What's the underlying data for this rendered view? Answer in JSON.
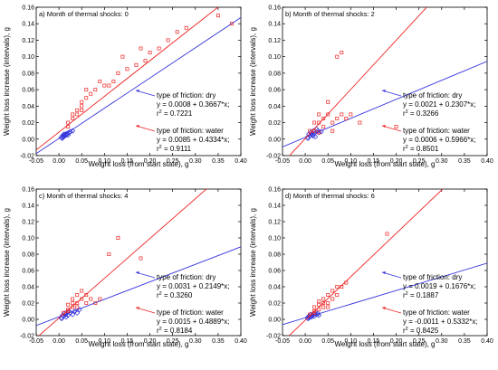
{
  "axes": {
    "xlabel": "Weight loss (from start state), g",
    "ylabel": "Weight loss increase (intervals), g",
    "xticks": [
      "-0.05",
      "0.00",
      "0.05",
      "0.10",
      "0.15",
      "0.20",
      "0.25",
      "0.30",
      "0.35",
      "0.40"
    ],
    "yticks": [
      "-0.02",
      "0.00",
      "0.02",
      "0.04",
      "0.06",
      "0.08",
      "0.10",
      "0.12",
      "0.14",
      "0.16"
    ]
  },
  "colors": {
    "dry": "#3333dd",
    "water": "#ee2222"
  },
  "chart_data": [
    {
      "type": "scatter",
      "title": "a) Month of thermal shocks: 0",
      "xlim": [
        -0.05,
        0.4
      ],
      "ylim": [
        -0.02,
        0.16
      ],
      "grid": false,
      "annotation_side": "right",
      "series": [
        {
          "name": "type of friction: dry",
          "intercept": 0.0008,
          "slope": 0.3667,
          "equation": "y = 0.0008 + 0.3667*x;",
          "r2_label": "r",
          "r2_sup": "2",
          "r2_value": " = 0.7221",
          "points": [
            [
              0.005,
              0.002
            ],
            [
              0.008,
              0.004
            ],
            [
              0.01,
              0.003
            ],
            [
              0.012,
              0.005
            ],
            [
              0.015,
              0.006
            ],
            [
              0.018,
              0.007
            ],
            [
              0.02,
              0.005
            ],
            [
              0.022,
              0.008
            ],
            [
              0.007,
              0.001
            ],
            [
              0.013,
              0.004
            ],
            [
              0.016,
              0.005
            ],
            [
              0.025,
              0.009
            ],
            [
              0.03,
              0.01
            ],
            [
              0.009,
              0.002
            ],
            [
              0.011,
              0.006
            ]
          ]
        },
        {
          "name": "type of friction: water",
          "intercept": 0.0085,
          "slope": 0.4334,
          "equation": "y = 0.0085 + 0.4334*x;",
          "r2_label": "r",
          "r2_sup": "2",
          "r2_value": " = 0.9111",
          "points": [
            [
              0.02,
              0.02
            ],
            [
              0.03,
              0.025
            ],
            [
              0.03,
              0.03
            ],
            [
              0.04,
              0.035
            ],
            [
              0.05,
              0.04
            ],
            [
              0.05,
              0.045
            ],
            [
              0.06,
              0.05
            ],
            [
              0.07,
              0.055
            ],
            [
              0.08,
              0.06
            ],
            [
              0.1,
              0.065
            ],
            [
              0.12,
              0.07
            ],
            [
              0.13,
              0.08
            ],
            [
              0.15,
              0.085
            ],
            [
              0.17,
              0.09
            ],
            [
              0.19,
              0.095
            ],
            [
              0.2,
              0.105
            ],
            [
              0.22,
              0.11
            ],
            [
              0.24,
              0.12
            ],
            [
              0.26,
              0.13
            ],
            [
              0.28,
              0.135
            ],
            [
              0.38,
              0.14
            ],
            [
              0.35,
              0.15
            ],
            [
              0.06,
              0.06
            ],
            [
              0.09,
              0.07
            ],
            [
              0.11,
              0.065
            ],
            [
              0.05,
              0.035
            ],
            [
              0.04,
              0.03
            ],
            [
              0.02,
              0.015
            ],
            [
              0.14,
              0.1
            ],
            [
              0.18,
              0.11
            ]
          ]
        }
      ]
    },
    {
      "type": "scatter",
      "title": "b) Month of thermal shocks: 2",
      "xlim": [
        -0.05,
        0.4
      ],
      "ylim": [
        -0.02,
        0.16
      ],
      "grid": false,
      "annotation_side": "right",
      "series": [
        {
          "name": "type of friction: dry",
          "intercept": 0.0021,
          "slope": 0.2307,
          "equation": "y = 0.0021 + 0.2307*x;",
          "r2_label": "r",
          "r2_sup": "2",
          "r2_value": " = 0.3266",
          "points": [
            [
              0.005,
              0.002
            ],
            [
              0.008,
              0.006
            ],
            [
              0.01,
              0.004
            ],
            [
              0.012,
              0.008
            ],
            [
              0.015,
              0.005
            ],
            [
              0.018,
              0.01
            ],
            [
              0.02,
              0.007
            ],
            [
              0.022,
              0.003
            ],
            [
              0.025,
              0.012
            ],
            [
              0.03,
              0.008
            ],
            [
              0.006,
              0.001
            ],
            [
              0.014,
              0.006
            ],
            [
              0.017,
              0.004
            ],
            [
              0.028,
              0.01
            ],
            [
              0.035,
              0.009
            ]
          ]
        },
        {
          "name": "type of friction: water",
          "intercept": 0.0006,
          "slope": 0.5966,
          "equation": "y = 0.0006 + 0.5966*x;",
          "r2_label": "r",
          "r2_sup": "2",
          "r2_value": " = 0.8501",
          "points": [
            [
              0.01,
              0.01
            ],
            [
              0.02,
              0.02
            ],
            [
              0.03,
              0.03
            ],
            [
              0.03,
              0.02
            ],
            [
              0.04,
              0.025
            ],
            [
              0.05,
              0.03
            ],
            [
              0.05,
              0.045
            ],
            [
              0.06,
              0.02
            ],
            [
              0.07,
              0.025
            ],
            [
              0.08,
              0.03
            ],
            [
              0.09,
              0.025
            ],
            [
              0.1,
              0.03
            ],
            [
              0.12,
              0.02
            ],
            [
              0.2,
              0.015
            ],
            [
              0.07,
              0.1
            ],
            [
              0.08,
              0.105
            ],
            [
              0.04,
              0.015
            ],
            [
              0.02,
              0.01
            ],
            [
              0.06,
              0.01
            ],
            [
              0.03,
              0.008
            ]
          ]
        }
      ]
    },
    {
      "type": "scatter",
      "title": "c) Month of thermal shocks: 4",
      "xlim": [
        -0.05,
        0.4
      ],
      "ylim": [
        -0.02,
        0.16
      ],
      "grid": false,
      "annotation_side": "right",
      "series": [
        {
          "name": "type of friction: dry",
          "intercept": 0.0031,
          "slope": 0.2149,
          "equation": "y = 0.0031 + 0.2149*x;",
          "r2_label": "r",
          "r2_sup": "2",
          "r2_value": " = 0.3260",
          "points": [
            [
              0.005,
              0.002
            ],
            [
              0.008,
              0.005
            ],
            [
              0.01,
              0.004
            ],
            [
              0.012,
              0.007
            ],
            [
              0.015,
              0.006
            ],
            [
              0.018,
              0.009
            ],
            [
              0.02,
              0.005
            ],
            [
              0.022,
              0.01
            ],
            [
              0.025,
              0.008
            ],
            [
              0.03,
              0.006
            ],
            [
              0.035,
              0.01
            ],
            [
              0.04,
              0.008
            ],
            [
              0.045,
              0.012
            ],
            [
              0.006,
              0.001
            ],
            [
              0.016,
              0.003
            ]
          ]
        },
        {
          "name": "type of friction: water",
          "intercept": 0.0015,
          "slope": 0.4889,
          "equation": "y = 0.0015 + 0.4889*x;",
          "r2_label": "r",
          "r2_sup": "2",
          "r2_value": " = 0.8184",
          "points": [
            [
              0.01,
              0.008
            ],
            [
              0.02,
              0.012
            ],
            [
              0.02,
              0.018
            ],
            [
              0.03,
              0.02
            ],
            [
              0.03,
              0.025
            ],
            [
              0.04,
              0.02
            ],
            [
              0.04,
              0.03
            ],
            [
              0.05,
              0.025
            ],
            [
              0.05,
              0.035
            ],
            [
              0.06,
              0.03
            ],
            [
              0.06,
              0.02
            ],
            [
              0.07,
              0.025
            ],
            [
              0.08,
              0.02
            ],
            [
              0.09,
              0.025
            ],
            [
              0.11,
              0.08
            ],
            [
              0.13,
              0.1
            ],
            [
              0.18,
              0.075
            ],
            [
              0.03,
              0.015
            ],
            [
              0.02,
              0.01
            ],
            [
              0.04,
              0.015
            ]
          ]
        }
      ]
    },
    {
      "type": "scatter",
      "title": "d) Month of thermal shocks: 6",
      "xlim": [
        -0.05,
        0.4
      ],
      "ylim": [
        -0.02,
        0.16
      ],
      "grid": false,
      "annotation_side": "right",
      "series": [
        {
          "name": "type of friction: dry",
          "intercept": 0.0019,
          "slope": 0.1676,
          "equation": "y = 0.0019 + 0.1676*x;",
          "r2_label": "r",
          "r2_sup": "2",
          "r2_value": " = 0.1887",
          "points": [
            [
              0.005,
              0.002
            ],
            [
              0.008,
              0.004
            ],
            [
              0.01,
              0.003
            ],
            [
              0.012,
              0.006
            ],
            [
              0.015,
              0.005
            ],
            [
              0.018,
              0.007
            ],
            [
              0.02,
              0.004
            ],
            [
              0.022,
              0.008
            ],
            [
              0.025,
              0.006
            ],
            [
              0.006,
              0.001
            ],
            [
              0.014,
              0.003
            ],
            [
              0.017,
              0.005
            ],
            [
              0.028,
              0.007
            ],
            [
              0.03,
              0.005
            ],
            [
              0.009,
              0.002
            ]
          ]
        },
        {
          "name": "type of friction: water",
          "intercept": -0.0011,
          "slope": 0.5332,
          "equation": "y = -0.0011 + 0.5332*x;",
          "r2_label": "r",
          "r2_sup": "2",
          "r2_value": " = 0.8425",
          "points": [
            [
              0.01,
              0.006
            ],
            [
              0.02,
              0.01
            ],
            [
              0.02,
              0.015
            ],
            [
              0.03,
              0.018
            ],
            [
              0.03,
              0.022
            ],
            [
              0.04,
              0.015
            ],
            [
              0.04,
              0.025
            ],
            [
              0.05,
              0.02
            ],
            [
              0.05,
              0.03
            ],
            [
              0.06,
              0.025
            ],
            [
              0.06,
              0.035
            ],
            [
              0.07,
              0.03
            ],
            [
              0.07,
              0.04
            ],
            [
              0.08,
              0.04
            ],
            [
              0.09,
              0.045
            ],
            [
              0.18,
              0.105
            ],
            [
              0.03,
              0.012
            ],
            [
              0.02,
              0.008
            ],
            [
              0.04,
              0.02
            ],
            [
              0.05,
              0.015
            ]
          ]
        }
      ]
    }
  ]
}
